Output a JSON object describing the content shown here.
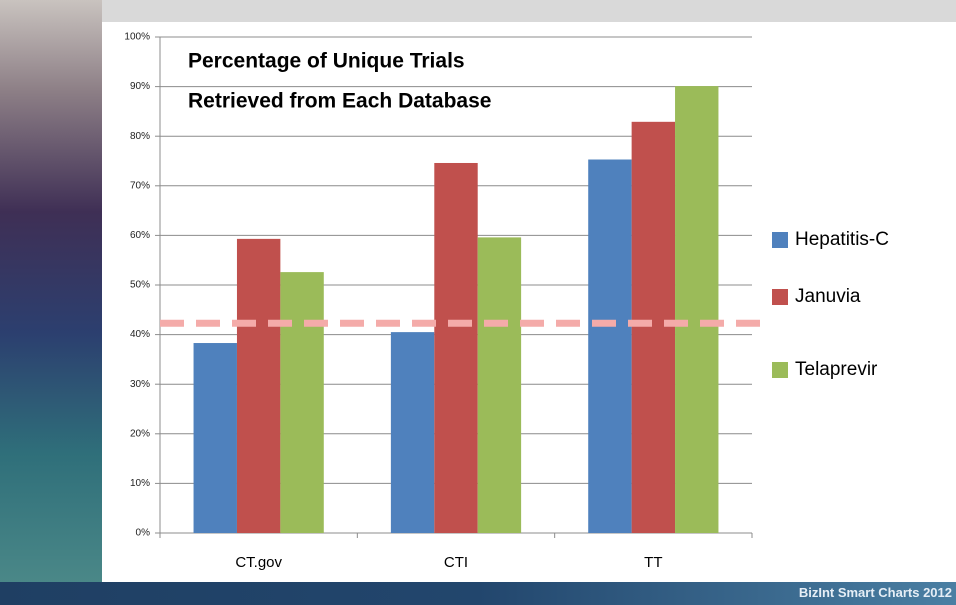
{
  "footer": "BizInt Smart Charts 2012",
  "chart_data": {
    "type": "bar",
    "title": [
      "Percentage of Unique Trials",
      "Retrieved from Each Database"
    ],
    "categories": [
      "CT.gov",
      "CTI",
      "TT"
    ],
    "series": [
      {
        "name": "Hepatitis-C",
        "color": "#4f81bd",
        "values": [
          38.3,
          40.5,
          75.3
        ]
      },
      {
        "name": "Januvia",
        "color": "#c0504d",
        "values": [
          59.3,
          74.6,
          82.9
        ]
      },
      {
        "name": "Telaprevir",
        "color": "#9bbb59",
        "values": [
          52.6,
          59.6,
          90.1
        ]
      }
    ],
    "reference_line": {
      "value": 42.3,
      "color": "#f4aba9"
    },
    "ylim": [
      0,
      100
    ],
    "yticks": [
      {
        "value": 0,
        "label": "0%"
      },
      {
        "value": 10,
        "label": "10%"
      },
      {
        "value": 20,
        "label": "20%"
      },
      {
        "value": 30,
        "label": "30%"
      },
      {
        "value": 40,
        "label": "40%"
      },
      {
        "value": 50,
        "label": "50%"
      },
      {
        "value": 60,
        "label": "60%"
      },
      {
        "value": 70,
        "label": "70%"
      },
      {
        "value": 80,
        "label": "80%"
      },
      {
        "value": 90,
        "label": "90%"
      },
      {
        "value": 100,
        "label": "100%"
      }
    ],
    "grid": true,
    "legend": "right"
  }
}
